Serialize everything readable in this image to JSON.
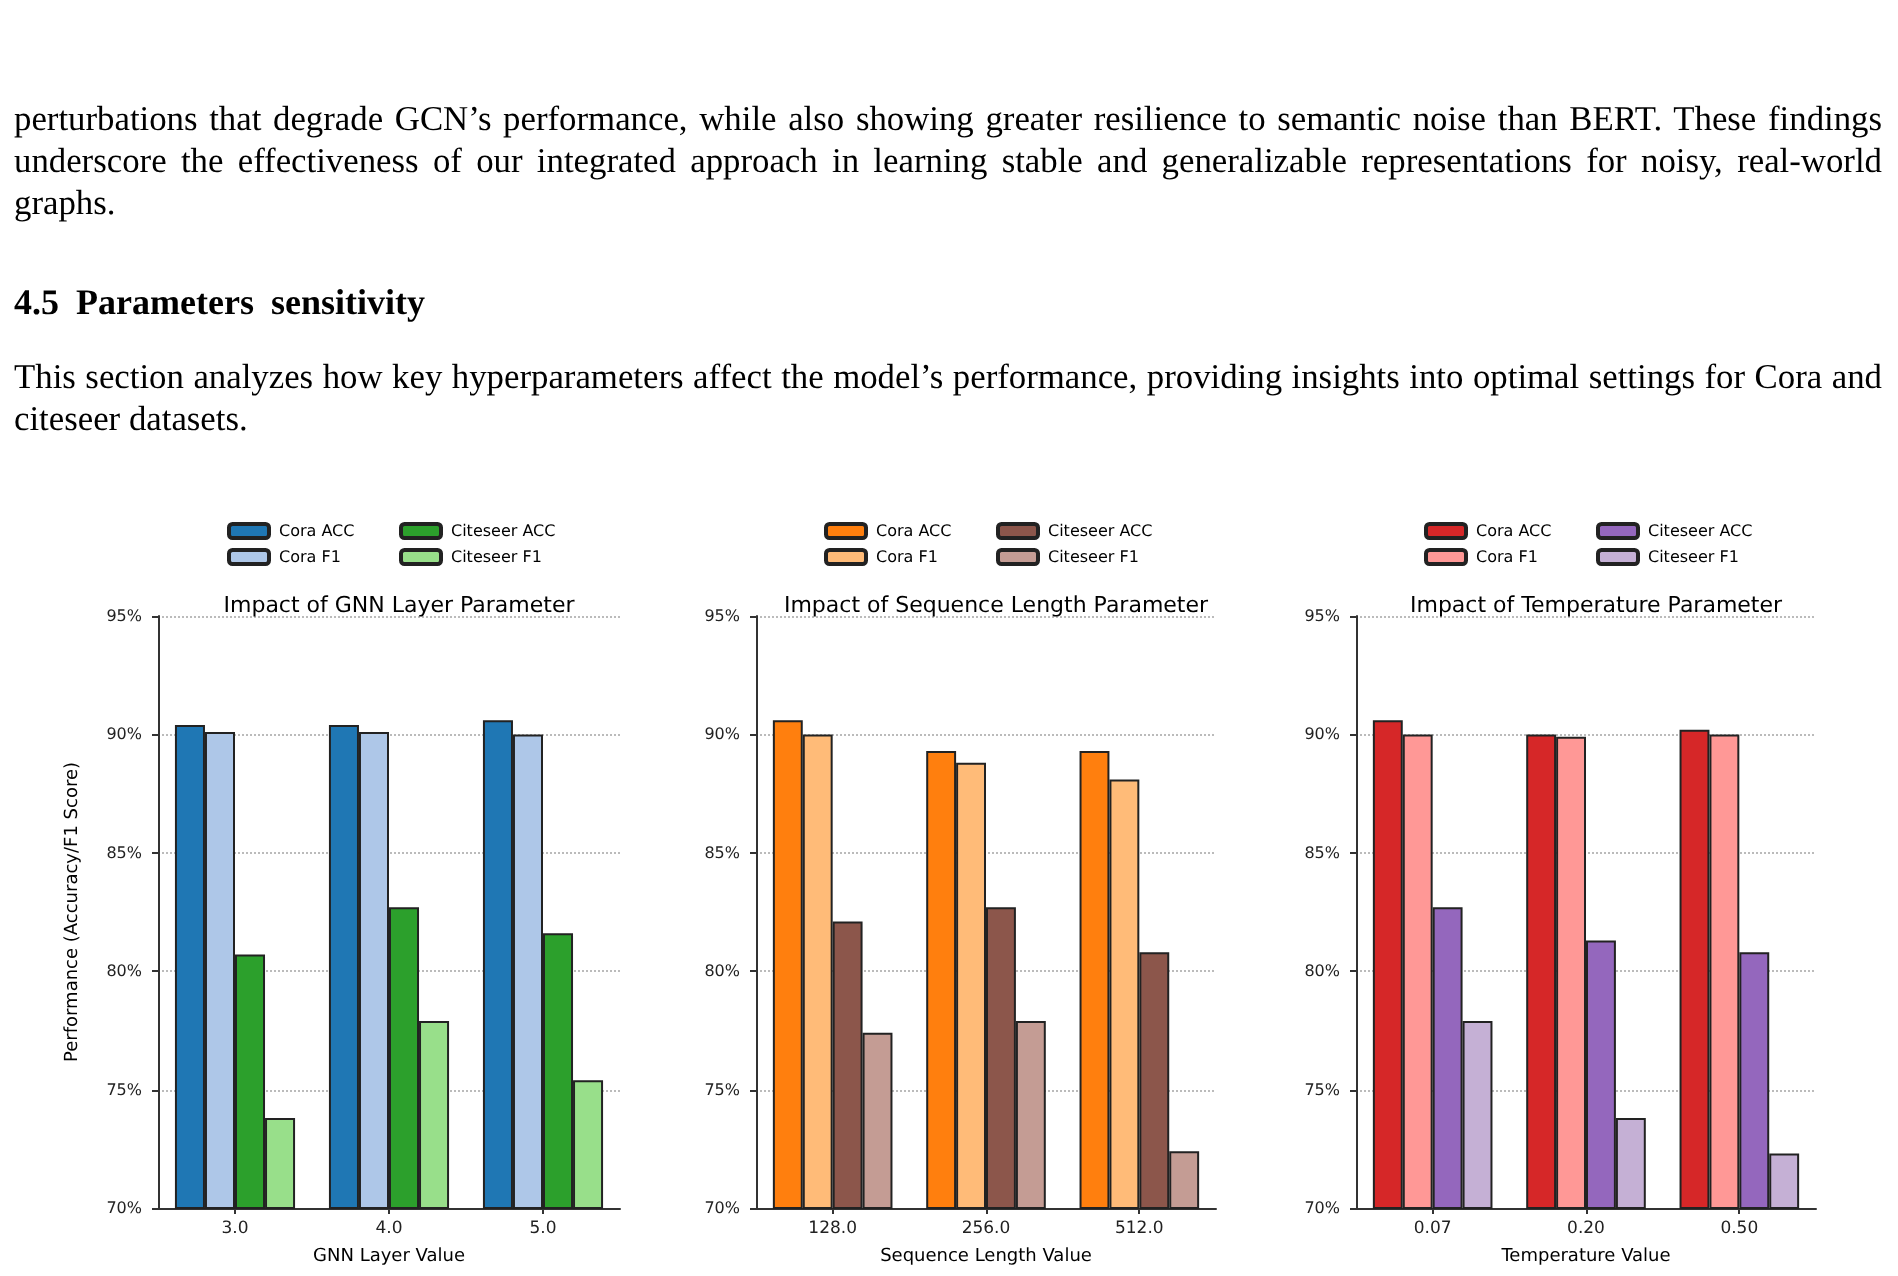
{
  "chart_data": [
    {
      "type": "other",
      "title": "4.5 Parameters sensitivity",
      "annotations": [
        "perturbations that degrade GCN’s performance, while also showing greater resilience to semantic noise than BERT. These findings underscore the effectiveness of our integrated approach in learning stable and generalizable representations for noisy, real-world graphs.",
        "This section analyzes how key hyperparameters affect the model’s performance, providing insights into optimal settings for Cora and citeseer datasets."
      ]
    },
    {
      "type": "bar",
      "title": "Impact of GNN Layer Parameter",
      "xlabel": "GNN Layer Value",
      "ylabel": "Performance (Accuracy/F1 Score)",
      "categories": [
        "3.0",
        "4.0",
        "5.0"
      ],
      "series": [
        {
          "name": "Cora ACC",
          "color": "#1f77b4",
          "values": [
            90.4,
            90.4,
            90.6
          ]
        },
        {
          "name": "Cora F1",
          "color": "#aec7e8",
          "values": [
            90.1,
            90.1,
            90.0
          ]
        },
        {
          "name": "Citeseer ACC",
          "color": "#2ca02c",
          "values": [
            80.7,
            82.7,
            81.6
          ]
        },
        {
          "name": "Citeseer F1",
          "color": "#98df8a",
          "values": [
            73.8,
            77.9,
            75.4
          ]
        }
      ],
      "ylim": [
        70,
        95
      ],
      "yticks": [
        {
          "value": 70,
          "label": "70%"
        },
        {
          "value": 75,
          "label": "75%"
        },
        {
          "value": 80,
          "label": "80%"
        },
        {
          "value": 85,
          "label": "85%"
        },
        {
          "value": 90,
          "label": "90%"
        },
        {
          "value": 95,
          "label": "95%"
        }
      ],
      "grid": "y",
      "legend": "top"
    },
    {
      "type": "bar",
      "title": "Impact of Sequence Length Parameter",
      "xlabel": "Sequence Length Value",
      "categories": [
        "128.0",
        "256.0",
        "512.0"
      ],
      "series": [
        {
          "name": "Cora ACC",
          "color": "#ff7f0e",
          "values": [
            90.6,
            89.3,
            89.3
          ]
        },
        {
          "name": "Cora F1",
          "color": "#ffbb78",
          "values": [
            90.0,
            88.8,
            88.1
          ]
        },
        {
          "name": "Citeseer ACC",
          "color": "#8c564b",
          "values": [
            82.1,
            82.7,
            80.8
          ]
        },
        {
          "name": "Citeseer F1",
          "color": "#c49c94",
          "values": [
            77.4,
            77.9,
            72.4
          ]
        }
      ],
      "ylim": [
        70,
        95
      ],
      "yticks": [
        {
          "value": 70,
          "label": "70%"
        },
        {
          "value": 75,
          "label": "75%"
        },
        {
          "value": 80,
          "label": "80%"
        },
        {
          "value": 85,
          "label": "85%"
        },
        {
          "value": 90,
          "label": "90%"
        },
        {
          "value": 95,
          "label": "95%"
        }
      ],
      "grid": "y",
      "legend": "top"
    },
    {
      "type": "bar",
      "title": "Impact of Temperature Parameter",
      "xlabel": "Temperature Value",
      "categories": [
        "0.07",
        "0.20",
        "0.50"
      ],
      "series": [
        {
          "name": "Cora ACC",
          "color": "#d62728",
          "values": [
            90.6,
            90.0,
            90.2
          ]
        },
        {
          "name": "Cora F1",
          "color": "#ff9896",
          "values": [
            90.0,
            89.9,
            90.0
          ]
        },
        {
          "name": "Citeseer ACC",
          "color": "#9467bd",
          "values": [
            82.7,
            81.3,
            80.8
          ]
        },
        {
          "name": "Citeseer F1",
          "color": "#c5b0d5",
          "values": [
            77.9,
            73.8,
            72.3
          ]
        }
      ],
      "ylim": [
        70,
        95
      ],
      "yticks": [
        {
          "value": 70,
          "label": "70%"
        },
        {
          "value": 75,
          "label": "75%"
        },
        {
          "value": 80,
          "label": "80%"
        },
        {
          "value": 85,
          "label": "85%"
        },
        {
          "value": 90,
          "label": "90%"
        },
        {
          "value": 95,
          "label": "95%"
        }
      ],
      "grid": "y",
      "legend": "top"
    }
  ]
}
